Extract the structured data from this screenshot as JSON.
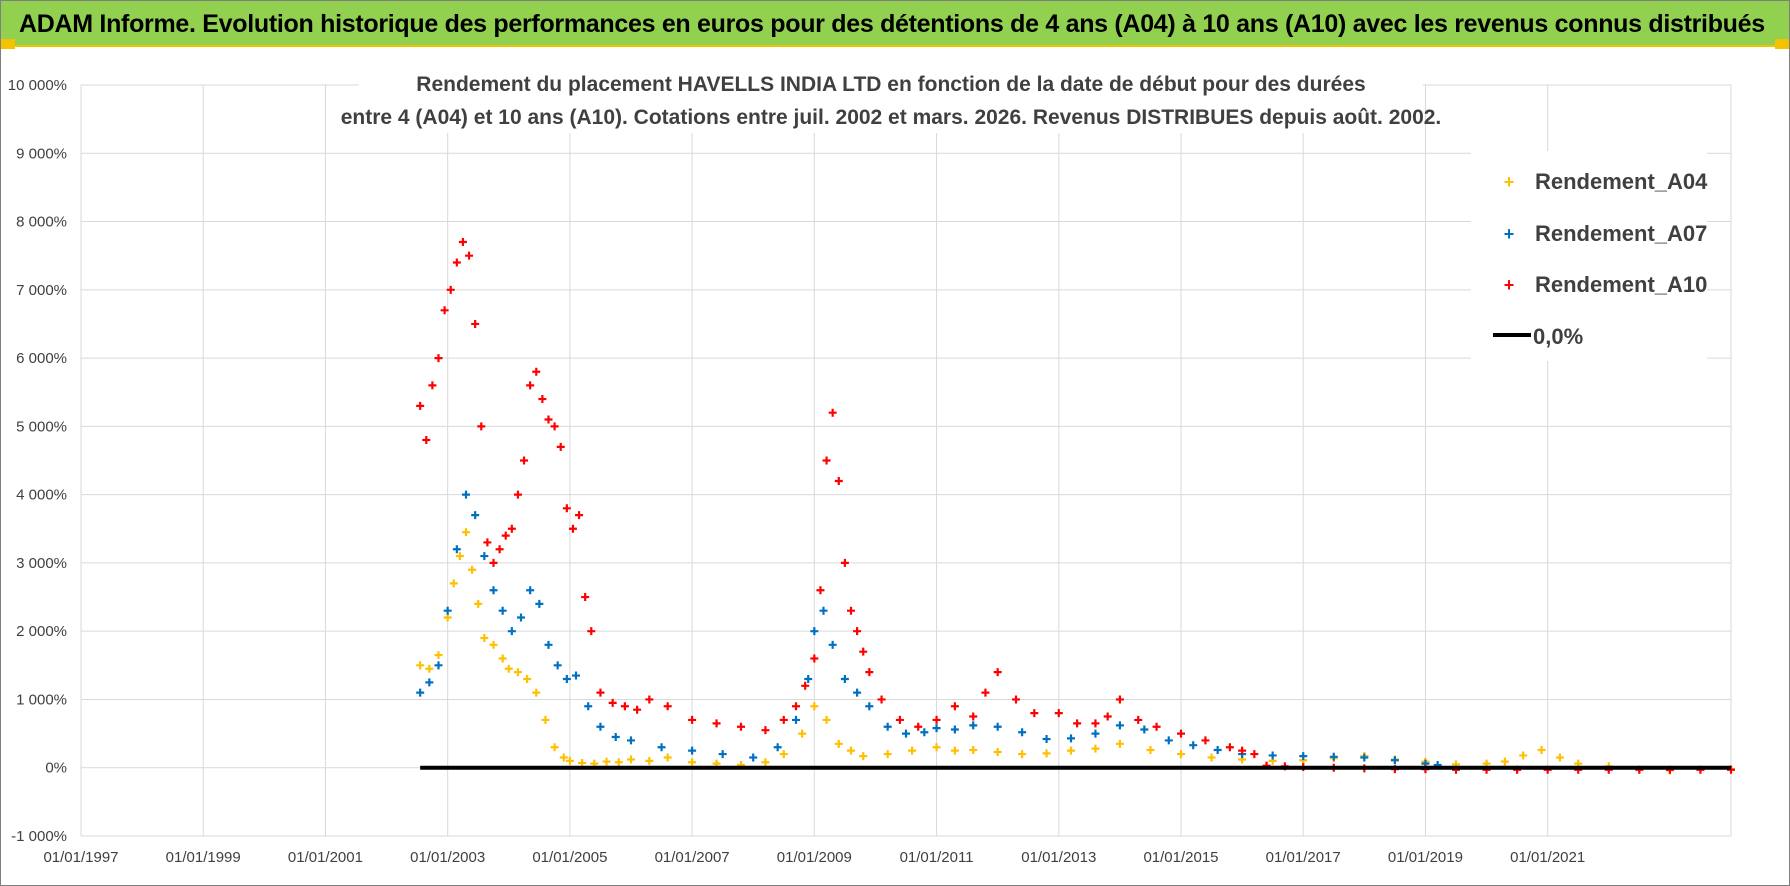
{
  "header": {
    "banner": "ADAM Informe. Evolution historique des performances en euros pour des détentions de 4 ans (A04) à 10 ans (A10) avec les revenus connus distribués"
  },
  "chart_data": {
    "type": "scatter",
    "title_line1": "Rendement du placement HAVELLS INDIA LTD en fonction de la date de début pour des durées",
    "title_line2": "entre 4 (A04) et 10 ans (A10).  Cotations entre juil. 2002 et mars. 2026. Revenus DISTRIBUES depuis août. 2002.",
    "xlabel": "",
    "ylabel": "",
    "xlim": [
      1997.0,
      2024.0
    ],
    "ylim": [
      -1000,
      10000
    ],
    "x_ticks": [
      {
        "value": 1997.0,
        "label": "01/01/1997"
      },
      {
        "value": 1999.0,
        "label": "01/01/1999"
      },
      {
        "value": 2001.0,
        "label": "01/01/2001"
      },
      {
        "value": 2003.0,
        "label": "01/01/2003"
      },
      {
        "value": 2005.0,
        "label": "01/01/2005"
      },
      {
        "value": 2007.0,
        "label": "01/01/2007"
      },
      {
        "value": 2009.0,
        "label": "01/01/2009"
      },
      {
        "value": 2011.0,
        "label": "01/01/2011"
      },
      {
        "value": 2013.0,
        "label": "01/01/2013"
      },
      {
        "value": 2015.0,
        "label": "01/01/2015"
      },
      {
        "value": 2017.0,
        "label": "01/01/2017"
      },
      {
        "value": 2019.0,
        "label": "01/01/2019"
      },
      {
        "value": 2021.0,
        "label": "01/01/2021"
      }
    ],
    "y_ticks": [
      {
        "value": 10000,
        "label": "10 000%"
      },
      {
        "value": 9000,
        "label": "9 000%"
      },
      {
        "value": 8000,
        "label": "8 000%"
      },
      {
        "value": 7000,
        "label": "7 000%"
      },
      {
        "value": 6000,
        "label": "6 000%"
      },
      {
        "value": 5000,
        "label": "5 000%"
      },
      {
        "value": 4000,
        "label": "4 000%"
      },
      {
        "value": 3000,
        "label": "3 000%"
      },
      {
        "value": 2000,
        "label": "2 000%"
      },
      {
        "value": 1000,
        "label": "1 000%"
      },
      {
        "value": 0,
        "label": "0%"
      },
      {
        "value": -1000,
        "label": "-1 000%"
      }
    ],
    "grid": true,
    "legend_position": "top-right",
    "series": [
      {
        "name": "Rendement_A04",
        "color": "#ffc000",
        "marker": "plus",
        "x": [
          2002.55,
          2002.7,
          2002.85,
          2003.0,
          2003.1,
          2003.2,
          2003.3,
          2003.4,
          2003.5,
          2003.6,
          2003.75,
          2003.9,
          2004.0,
          2004.15,
          2004.3,
          2004.45,
          2004.6,
          2004.75,
          2004.9,
          2005.0,
          2005.2,
          2005.4,
          2005.6,
          2005.8,
          2006.0,
          2006.3,
          2006.6,
          2007.0,
          2007.4,
          2007.8,
          2008.2,
          2008.5,
          2008.8,
          2009.0,
          2009.2,
          2009.4,
          2009.6,
          2009.8,
          2010.2,
          2010.6,
          2011.0,
          2011.3,
          2011.6,
          2012.0,
          2012.4,
          2012.8,
          2013.2,
          2013.6,
          2014.0,
          2014.5,
          2015.0,
          2015.5,
          2016.0,
          2016.5,
          2017.0,
          2017.5,
          2018.0,
          2018.5,
          2019.0,
          2019.5,
          2020.0,
          2020.3,
          2020.6,
          2020.9,
          2021.2,
          2021.5,
          2022.0,
          2022.5,
          2023.0,
          2023.5,
          2024.0
        ],
        "y": [
          1500,
          1450,
          1650,
          2200,
          2700,
          3100,
          3450,
          2900,
          2400,
          1900,
          1800,
          1600,
          1450,
          1400,
          1300,
          1100,
          700,
          300,
          150,
          100,
          70,
          60,
          90,
          80,
          120,
          100,
          150,
          80,
          60,
          40,
          80,
          200,
          500,
          900,
          700,
          350,
          250,
          170,
          200,
          250,
          300,
          250,
          260,
          230,
          200,
          210,
          250,
          280,
          350,
          260,
          200,
          150,
          120,
          100,
          110,
          140,
          170,
          120,
          90,
          50,
          60,
          90,
          180,
          260,
          150,
          60,
          20,
          -30,
          -40,
          -30,
          -20
        ]
      },
      {
        "name": "Rendement_A07",
        "color": "#0070c0",
        "marker": "plus",
        "x": [
          2002.55,
          2002.7,
          2002.85,
          2003.0,
          2003.15,
          2003.3,
          2003.45,
          2003.6,
          2003.75,
          2003.9,
          2004.05,
          2004.2,
          2004.35,
          2004.5,
          2004.65,
          2004.8,
          2004.95,
          2005.1,
          2005.3,
          2005.5,
          2005.75,
          2006.0,
          2006.5,
          2007.0,
          2007.5,
          2008.0,
          2008.4,
          2008.7,
          2008.9,
          2009.0,
          2009.15,
          2009.3,
          2009.5,
          2009.7,
          2009.9,
          2010.2,
          2010.5,
          2010.8,
          2011.0,
          2011.3,
          2011.6,
          2012.0,
          2012.4,
          2012.8,
          2013.2,
          2013.6,
          2014.0,
          2014.4,
          2014.8,
          2015.2,
          2015.6,
          2016.0,
          2016.5,
          2017.0,
          2017.5,
          2018.0,
          2018.5,
          2019.0,
          2019.2
        ],
        "y": [
          1100,
          1250,
          1500,
          2300,
          3200,
          4000,
          3700,
          3100,
          2600,
          2300,
          2000,
          2200,
          2600,
          2400,
          1800,
          1500,
          1300,
          1350,
          900,
          600,
          450,
          400,
          300,
          250,
          200,
          150,
          300,
          700,
          1300,
          2000,
          2300,
          1800,
          1300,
          1100,
          900,
          600,
          500,
          520,
          580,
          560,
          620,
          600,
          520,
          420,
          430,
          500,
          620,
          560,
          400,
          330,
          260,
          200,
          180,
          170,
          160,
          150,
          110,
          60,
          40
        ]
      },
      {
        "name": "Rendement_A10",
        "color": "#ff0000",
        "marker": "plus",
        "x": [
          2002.55,
          2002.65,
          2002.75,
          2002.85,
          2002.95,
          2003.05,
          2003.15,
          2003.25,
          2003.35,
          2003.45,
          2003.55,
          2003.65,
          2003.75,
          2003.85,
          2003.95,
          2004.05,
          2004.15,
          2004.25,
          2004.35,
          2004.45,
          2004.55,
          2004.65,
          2004.75,
          2004.85,
          2004.95,
          2005.05,
          2005.15,
          2005.25,
          2005.35,
          2005.5,
          2005.7,
          2005.9,
          2006.1,
          2006.3,
          2006.6,
          2007.0,
          2007.4,
          2007.8,
          2008.2,
          2008.5,
          2008.7,
          2008.85,
          2009.0,
          2009.1,
          2009.2,
          2009.3,
          2009.4,
          2009.5,
          2009.6,
          2009.7,
          2009.8,
          2009.9,
          2010.1,
          2010.4,
          2010.7,
          2011.0,
          2011.3,
          2011.6,
          2011.8,
          2012.0,
          2012.3,
          2012.6,
          2013.0,
          2013.3,
          2013.6,
          2013.8,
          2014.0,
          2014.3,
          2014.6,
          2015.0,
          2015.4,
          2015.8,
          2016.0,
          2016.2,
          2016.4,
          2016.7,
          2017.0,
          2017.5,
          2018.0,
          2018.5,
          2019.0,
          2019.5,
          2020.0,
          2020.5,
          2021.0,
          2021.5,
          2022.0,
          2022.5,
          2023.0,
          2023.5,
          2024.0
        ],
        "y": [
          5300,
          4800,
          5600,
          6000,
          6700,
          7000,
          7400,
          7700,
          7500,
          6500,
          5000,
          3300,
          3000,
          3200,
          3400,
          3500,
          4000,
          4500,
          5600,
          5800,
          5400,
          5100,
          5000,
          4700,
          3800,
          3500,
          3700,
          2500,
          2000,
          1100,
          950,
          900,
          850,
          1000,
          900,
          700,
          650,
          600,
          550,
          700,
          900,
          1200,
          1600,
          2600,
          4500,
          5200,
          4200,
          3000,
          2300,
          2000,
          1700,
          1400,
          1000,
          700,
          600,
          700,
          900,
          750,
          1100,
          1400,
          1000,
          800,
          800,
          650,
          650,
          750,
          1000,
          700,
          600,
          500,
          400,
          300,
          250,
          200,
          30,
          20,
          10,
          0,
          -10,
          -20,
          -20,
          -30,
          -30,
          -30,
          -30,
          -30,
          -30,
          -30,
          -30,
          -30,
          -30
        ]
      },
      {
        "name": "0,0%",
        "color": "#000000",
        "marker": "line",
        "x": [
          2002.55,
          2024.0
        ],
        "y": [
          0,
          0
        ]
      }
    ]
  }
}
